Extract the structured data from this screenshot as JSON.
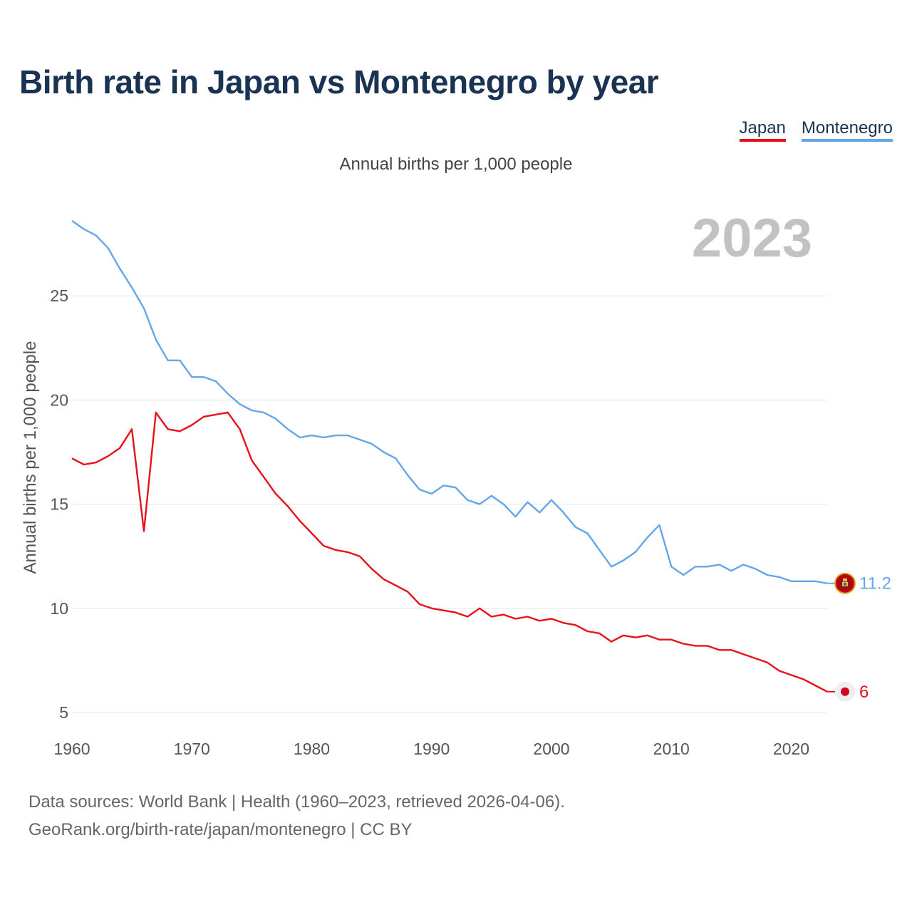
{
  "title": "Birth rate in Japan vs Montenegro by year",
  "subtitle": "Annual births per 1,000 people",
  "legend": {
    "japan": "Japan",
    "montenegro": "Montenegro"
  },
  "year_label": "2023",
  "source": {
    "line1": "Data sources: World Bank | Health (1960–2023, retrieved 2026-04-06).",
    "line2": "GeoRank.org/birth-rate/japan/montenegro | CC BY"
  },
  "colors": {
    "japan": "#e8101a",
    "montenegro": "#64a6e6",
    "title": "#1a3353"
  },
  "chart_data": {
    "type": "line",
    "title": "Birth rate in Japan vs Montenegro by year",
    "xlabel": "",
    "ylabel": "Annual births per 1,000 people",
    "xlim": [
      1960,
      2023
    ],
    "ylim": [
      5,
      29
    ],
    "x_ticks": [
      1960,
      1970,
      1980,
      1990,
      2000,
      2010,
      2020
    ],
    "y_ticks": [
      5,
      10,
      15,
      20,
      25
    ],
    "x": [
      1960,
      1961,
      1962,
      1963,
      1964,
      1965,
      1966,
      1967,
      1968,
      1969,
      1970,
      1971,
      1972,
      1973,
      1974,
      1975,
      1976,
      1977,
      1978,
      1979,
      1980,
      1981,
      1982,
      1983,
      1984,
      1985,
      1986,
      1987,
      1988,
      1989,
      1990,
      1991,
      1992,
      1993,
      1994,
      1995,
      1996,
      1997,
      1998,
      1999,
      2000,
      2001,
      2002,
      2003,
      2004,
      2005,
      2006,
      2007,
      2008,
      2009,
      2010,
      2011,
      2012,
      2013,
      2014,
      2015,
      2016,
      2017,
      2018,
      2019,
      2020,
      2021,
      2022,
      2023
    ],
    "series": [
      {
        "name": "Japan",
        "color": "#e8101a",
        "end_label": "6",
        "values": [
          17.2,
          16.9,
          17.0,
          17.3,
          17.7,
          18.6,
          13.7,
          19.4,
          18.6,
          18.5,
          18.8,
          19.2,
          19.3,
          19.4,
          18.6,
          17.1,
          16.3,
          15.5,
          14.9,
          14.2,
          13.6,
          13.0,
          12.8,
          12.7,
          12.5,
          11.9,
          11.4,
          11.1,
          10.8,
          10.2,
          10.0,
          9.9,
          9.8,
          9.6,
          10.0,
          9.6,
          9.7,
          9.5,
          9.6,
          9.4,
          9.5,
          9.3,
          9.2,
          8.9,
          8.8,
          8.4,
          8.7,
          8.6,
          8.7,
          8.5,
          8.5,
          8.3,
          8.2,
          8.2,
          8.0,
          8.0,
          7.8,
          7.6,
          7.4,
          7.0,
          6.8,
          6.6,
          6.3,
          6.0
        ]
      },
      {
        "name": "Montenegro",
        "color": "#64a6e6",
        "end_label": "11.2",
        "values": [
          28.6,
          28.2,
          27.9,
          27.3,
          26.3,
          25.4,
          24.4,
          22.9,
          21.9,
          21.9,
          21.1,
          21.1,
          20.9,
          20.3,
          19.8,
          19.5,
          19.4,
          19.1,
          18.6,
          18.2,
          18.3,
          18.2,
          18.3,
          18.3,
          18.1,
          17.9,
          17.5,
          17.2,
          16.4,
          15.7,
          15.5,
          15.9,
          15.8,
          15.2,
          15.0,
          15.4,
          15.0,
          14.4,
          15.1,
          14.6,
          15.2,
          14.6,
          13.9,
          13.6,
          12.8,
          12.0,
          12.3,
          12.7,
          13.4,
          14.0,
          12.0,
          11.6,
          12.0,
          12.0,
          12.1,
          11.8,
          12.1,
          11.9,
          11.6,
          11.5,
          11.3,
          11.3,
          11.3,
          11.2
        ]
      }
    ]
  }
}
